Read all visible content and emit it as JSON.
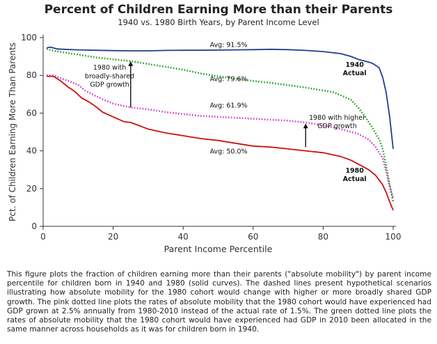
{
  "page": {
    "title": "Percent of Children Earning More than their Parents",
    "subtitle": "1940 vs. 1980 Birth Years, by Parent Income Level",
    "caption": "This figure plots the fraction of children earning more than their parents (\"absolute mobility\") by parent income percentile for children born in 1940 and 1980 (solid curves). The dashed lines present hypothetical scenarios illustrating how absolute mobility for the 1980 cohort would change with higher or more broadly shared GDP growth. The pink dotted line plots the rates of absolute mobility that the 1980 cohort would have experienced had GDP grown at 2.5% annually from 1980-2010 instead of the actual rate of 1.5%. The green dotted line plots the rates of absolute mobility that the 1980 cohort would have experienced had GDP in 2010 been allocated in the same manner across households as it was for children born in 1940."
  },
  "chart_data": {
    "type": "line",
    "xlabel": "Parent Income Percentile",
    "ylabel": "Pct. of Children Earning More Than Parents",
    "xlim": [
      0,
      100
    ],
    "ylim": [
      0,
      100
    ],
    "xticks": [
      "0",
      "20",
      "40",
      "60",
      "80",
      "100"
    ],
    "yticks": [
      "0",
      "20",
      "40",
      "60",
      "80",
      "100"
    ],
    "grid": false,
    "series": [
      {
        "name": "1940 Actual",
        "style": "solid",
        "color": "#1f3f8f",
        "x": [
          1,
          2,
          4,
          6,
          10,
          15,
          20,
          25,
          30,
          35,
          40,
          45,
          50,
          55,
          60,
          65,
          70,
          75,
          80,
          85,
          88,
          90,
          92,
          94,
          96,
          97,
          98,
          99,
          100
        ],
        "y": [
          94.5,
          95,
          94,
          93.8,
          93.5,
          93.3,
          93.1,
          93,
          93,
          93.2,
          93.3,
          93.3,
          93.4,
          93.5,
          93.6,
          93.8,
          93.6,
          93.2,
          92.6,
          91.5,
          90,
          88.5,
          87.5,
          86.5,
          84,
          79,
          71,
          58,
          41
        ]
      },
      {
        "name": "1980 with broadly-shared GDP growth",
        "style": "dotted",
        "color": "#1e9e1e",
        "x": [
          1,
          3,
          5,
          8,
          10,
          15,
          20,
          25,
          30,
          35,
          40,
          45,
          50,
          55,
          60,
          65,
          70,
          75,
          80,
          83,
          85,
          88,
          90,
          92,
          94,
          96,
          97,
          98,
          99,
          100
        ],
        "y": [
          94,
          93,
          92.5,
          91.5,
          91,
          89.5,
          88.5,
          87.5,
          86,
          84.5,
          83,
          81,
          79.5,
          78.3,
          77,
          76,
          74.8,
          73.5,
          72,
          71,
          69.5,
          67,
          63,
          58,
          52.5,
          46,
          41,
          32,
          22,
          13
        ]
      },
      {
        "name": "1980 with higher GDP growth",
        "style": "dotted",
        "color": "#d23bd2",
        "x": [
          1,
          3,
          5,
          8,
          10,
          12,
          15,
          18,
          20,
          25,
          30,
          35,
          40,
          45,
          50,
          55,
          60,
          65,
          70,
          75,
          80,
          85,
          90,
          93,
          95,
          97,
          98,
          99,
          100
        ],
        "y": [
          80,
          80,
          78.5,
          76.5,
          75,
          72,
          69,
          66.5,
          65,
          63,
          62,
          60.5,
          59.5,
          58.5,
          58,
          57.5,
          57,
          56.5,
          56,
          55,
          53.5,
          51.5,
          49,
          46,
          42,
          36,
          29,
          21,
          15
        ]
      },
      {
        "name": "1980 Actual",
        "style": "solid",
        "color": "#cc1010",
        "x": [
          1,
          3,
          5,
          7,
          9,
          11,
          13,
          15,
          17,
          20,
          23,
          25,
          28,
          30,
          35,
          40,
          45,
          50,
          55,
          60,
          65,
          70,
          75,
          80,
          85,
          88,
          90,
          93,
          95,
          97,
          98,
          99,
          100
        ],
        "y": [
          79.5,
          79.5,
          77,
          74,
          71.5,
          68,
          66,
          63.5,
          60.5,
          58,
          55.5,
          55,
          53,
          51.5,
          49.5,
          48,
          46.5,
          45.5,
          44,
          42.5,
          42,
          41,
          40,
          39,
          37,
          35,
          33,
          30,
          27,
          22,
          18,
          13,
          8.5
        ]
      }
    ],
    "annotations": [
      {
        "text": "Avg: 91.5%",
        "x": 53,
        "y": 95
      },
      {
        "text": "Avg: 79.6%",
        "x": 53,
        "y": 77
      },
      {
        "text": "Avg: 61.9%",
        "x": 53,
        "y": 63
      },
      {
        "text": "Avg: 50.0%",
        "x": 53,
        "y": 38.5
      },
      {
        "text": "1940",
        "x": 89,
        "y": 84.5,
        "bold": true
      },
      {
        "text": "Actual",
        "x": 89,
        "y": 80,
        "bold": true
      },
      {
        "text": "1980",
        "x": 89,
        "y": 28.5,
        "bold": true
      },
      {
        "text": "Actual",
        "x": 89,
        "y": 24,
        "bold": true
      },
      {
        "text": "1980 with",
        "x": 19,
        "y": 83
      },
      {
        "text": "broadly-shared",
        "x": 19,
        "y": 78.5
      },
      {
        "text": "GDP growth",
        "x": 19,
        "y": 74
      },
      {
        "text": "1980 with higher",
        "x": 84,
        "y": 56.5
      },
      {
        "text": "GDP growth",
        "x": 84,
        "y": 52
      }
    ],
    "arrows": [
      {
        "x": 25,
        "y_from": 63,
        "y_to": 87.5
      },
      {
        "x": 75,
        "y_from": 42,
        "y_to": 54.5
      }
    ]
  }
}
